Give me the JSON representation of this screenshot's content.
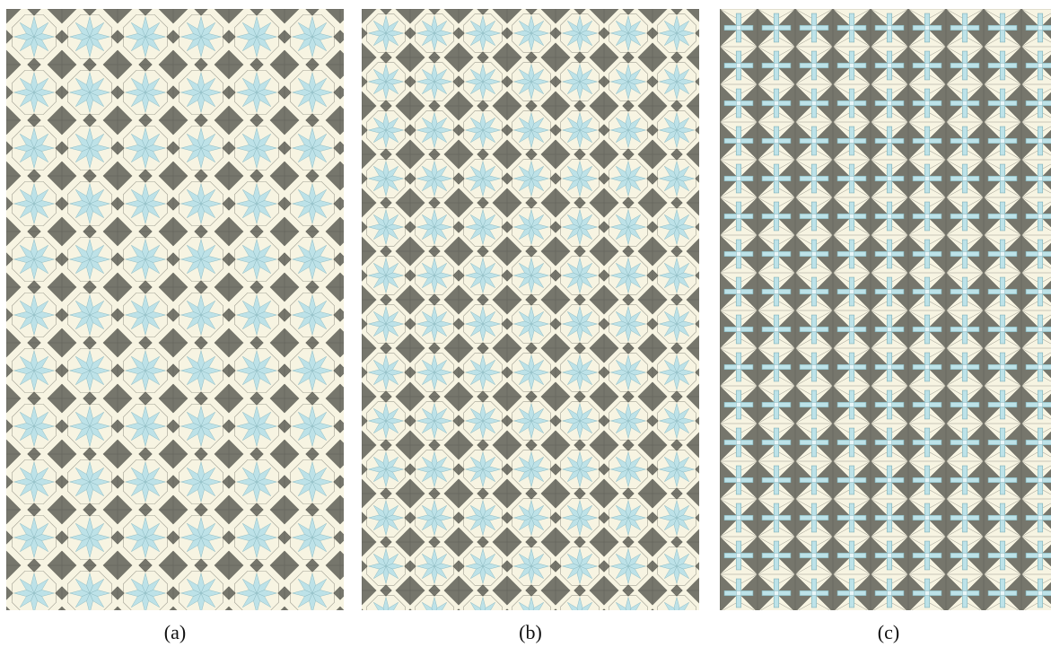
{
  "colors": {
    "light": "#bde2e8",
    "cream": "#f7f4e2",
    "dark": "#76766c",
    "line": "#5a5a52"
  },
  "panels": [
    {
      "id": "a",
      "caption": "(a)",
      "pattern": "eight-point-star"
    },
    {
      "id": "b",
      "caption": "(b)",
      "pattern": "eight-point-star"
    },
    {
      "id": "c",
      "caption": "(c)",
      "pattern": "cross-and-triangle"
    }
  ]
}
